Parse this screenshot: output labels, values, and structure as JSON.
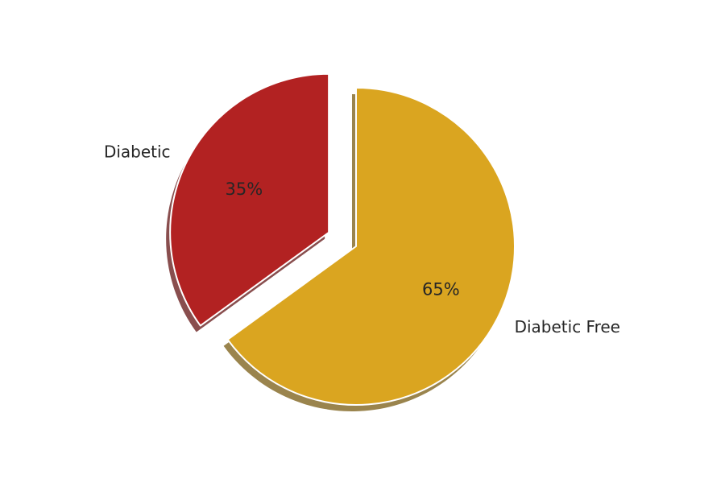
{
  "chart_data": {
    "type": "pie",
    "categories": [
      "Diabetic Free",
      "Diabetic"
    ],
    "values": [
      65,
      35
    ],
    "percent_labels": [
      "65%",
      "35%"
    ],
    "colors": [
      "#DAA520",
      "#B22222"
    ],
    "exploded": [
      false,
      true
    ],
    "shadow": true,
    "start_angle_deg": 90,
    "direction": "clockwise"
  }
}
